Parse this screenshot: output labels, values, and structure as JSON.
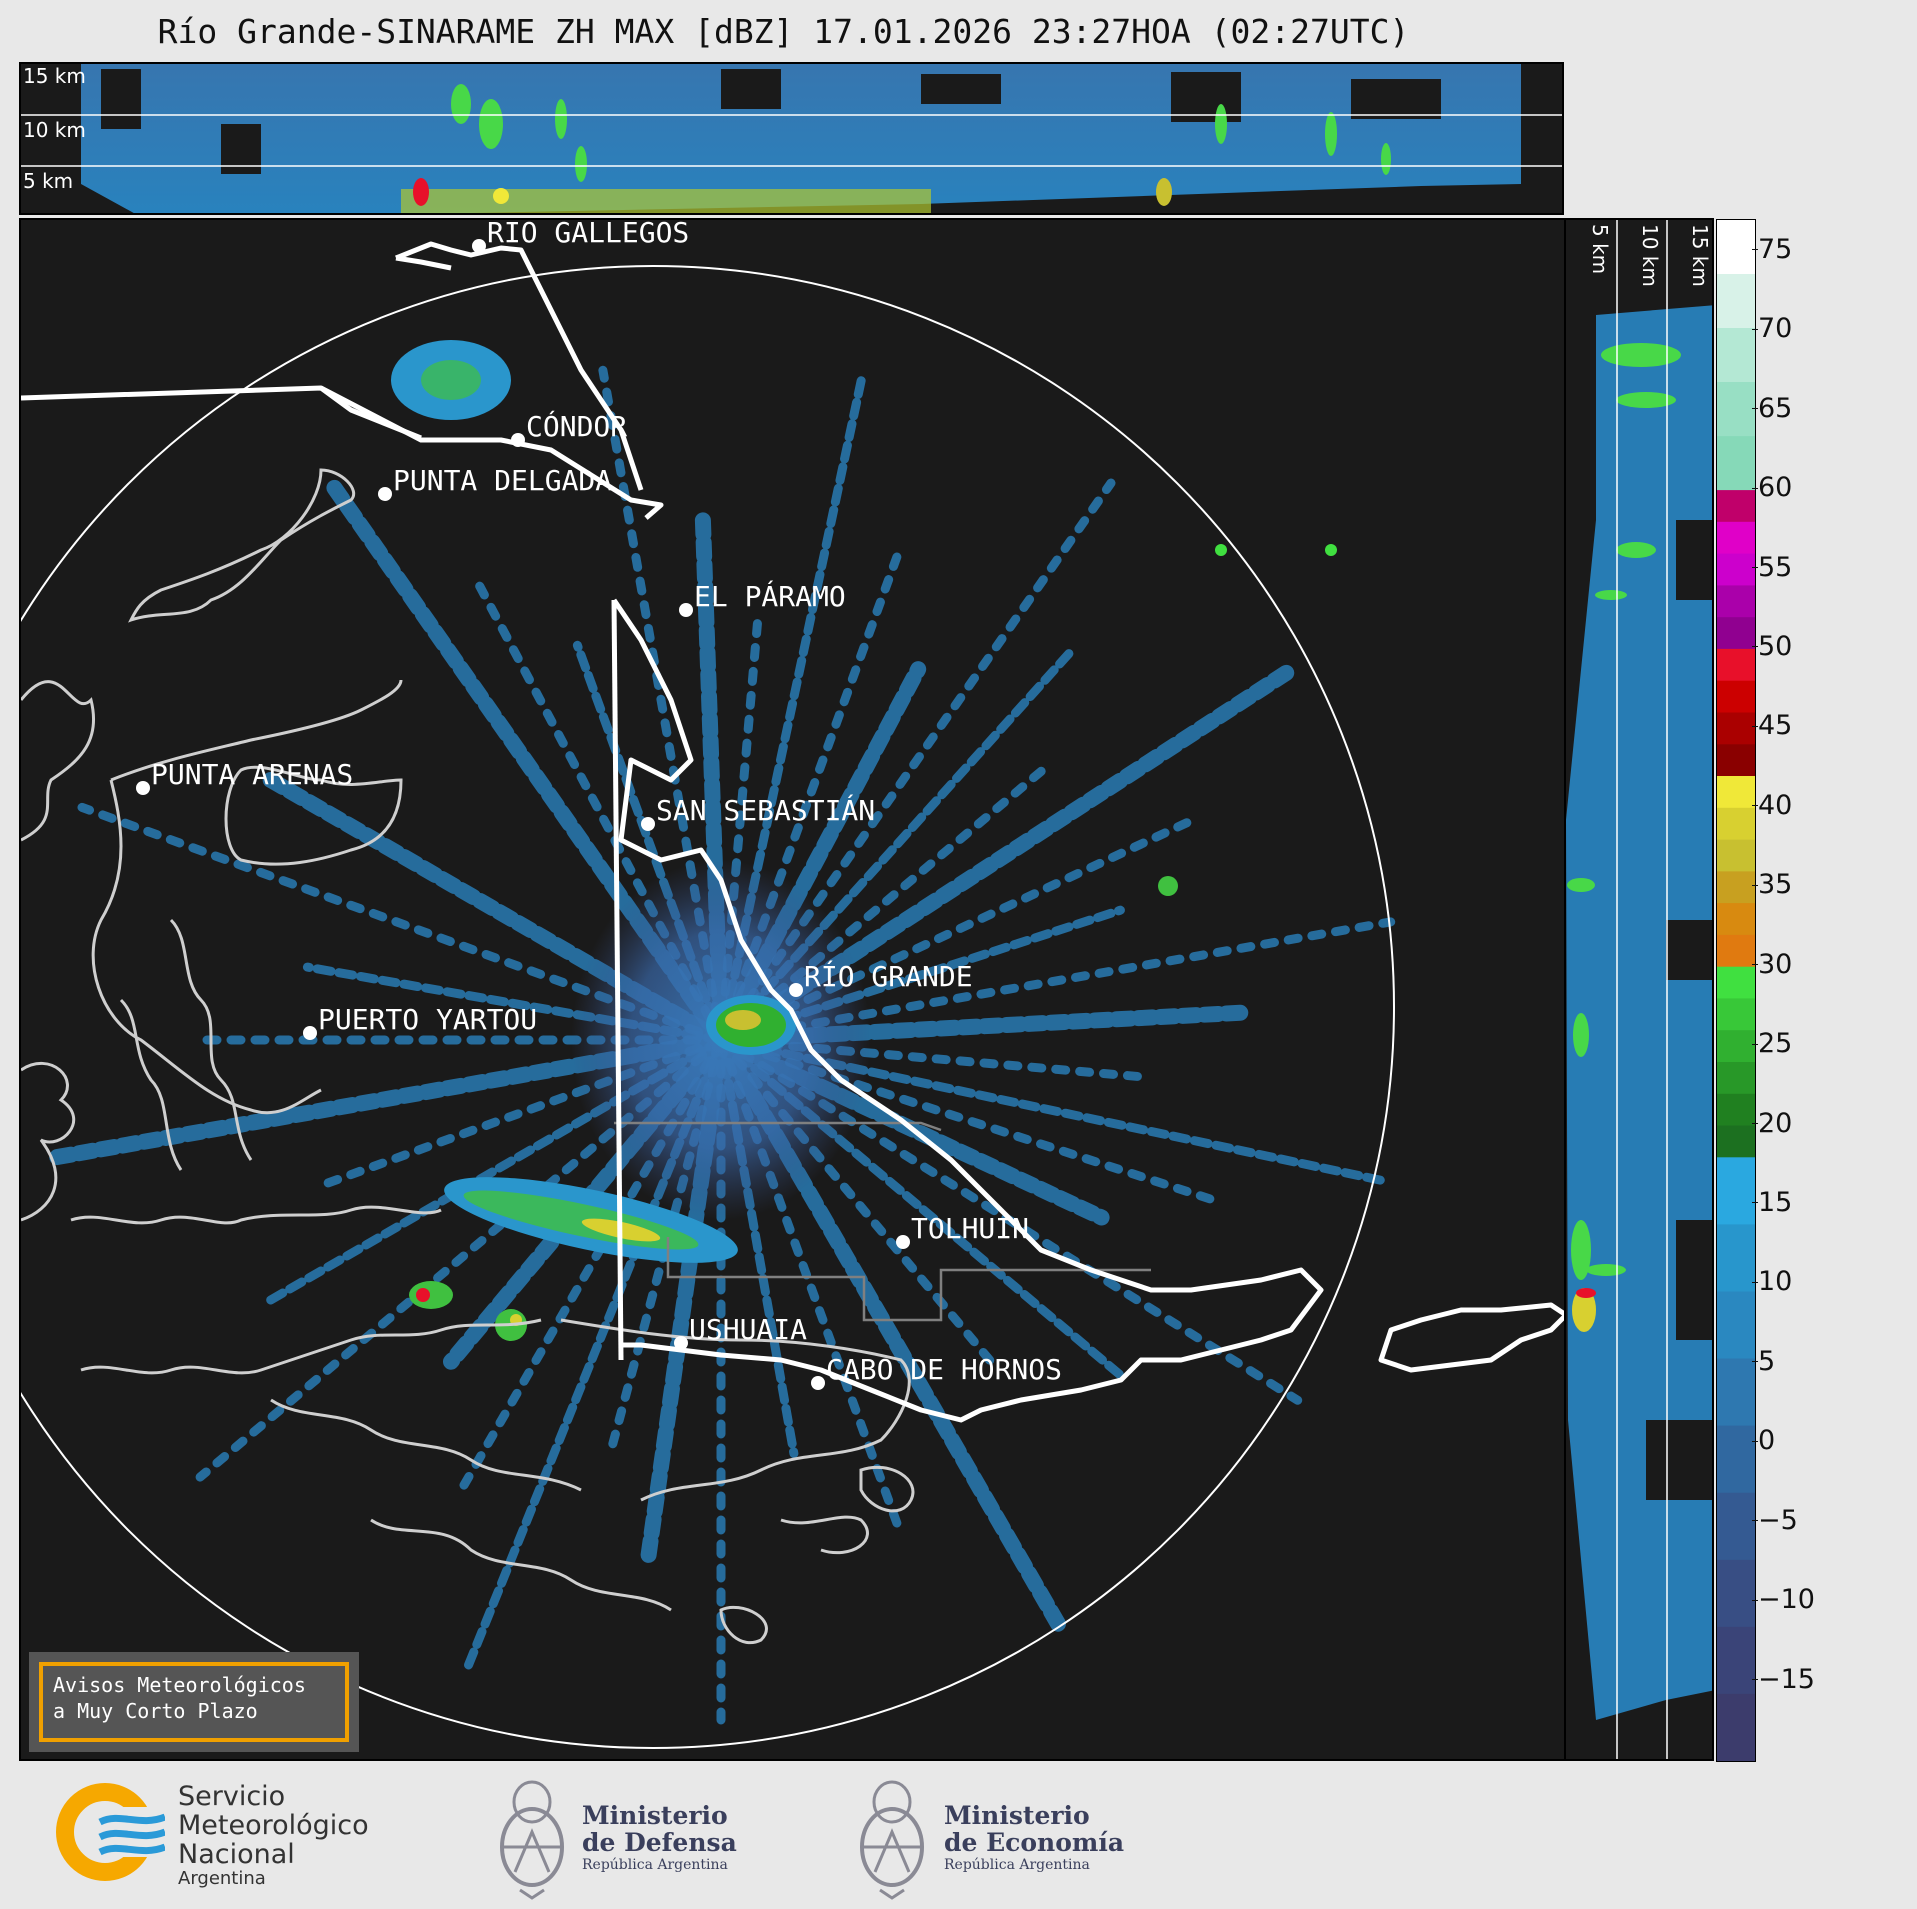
{
  "title": "Río Grande-SINARAME ZH MAX [dBZ] 17.01.2026 23:27HOA (02:27UTC)",
  "top_panel": {
    "altitude_labels": [
      "15 km",
      "10 km",
      "5 km"
    ]
  },
  "side_panel": {
    "altitude_labels": [
      "5 km",
      "10 km",
      "15 km"
    ]
  },
  "colorbar": {
    "unit": "dBZ",
    "range": [
      -20,
      77
    ],
    "ticks": [
      "75",
      "70",
      "65",
      "60",
      "55",
      "50",
      "45",
      "40",
      "35",
      "30",
      "25",
      "20",
      "15",
      "10",
      "5",
      "0",
      "−5",
      "−10",
      "−15"
    ],
    "bands": [
      {
        "from": 60,
        "to": 77,
        "colors": [
          "#ffffff",
          "#d8f2e8",
          "#b4e8d4",
          "#98dfc4",
          "#86d9b8"
        ]
      },
      {
        "from": 50,
        "to": 60,
        "colors": [
          "#c0006a",
          "#e000c8",
          "#cc00cc",
          "#aa00aa",
          "#900090"
        ]
      },
      {
        "from": 42,
        "to": 50,
        "colors": [
          "#e8102a",
          "#cc0000",
          "#aa0000",
          "#8a0000"
        ]
      },
      {
        "from": 30,
        "to": 42,
        "colors": [
          "#f0e838",
          "#d8d030",
          "#c8c030",
          "#c8a020",
          "#d88a10",
          "#e07a10"
        ]
      },
      {
        "from": 18,
        "to": 30,
        "colors": [
          "#40e040",
          "#38c838",
          "#30b030",
          "#289828",
          "#208020",
          "#1c7020"
        ]
      },
      {
        "from": -20,
        "to": 18,
        "colors": [
          "#2aa8e0",
          "#2896cc",
          "#2a88c0",
          "#2e78b0",
          "#3068a0",
          "#345a92",
          "#384e84",
          "#3a4478",
          "#3c3c6c"
        ]
      }
    ]
  },
  "map": {
    "cities": [
      {
        "name": "RÍO GALLEGOS"
      },
      {
        "name": "CÓNDOR"
      },
      {
        "name": "PUNTA DELGADA"
      },
      {
        "name": "EL PÁRAMO"
      },
      {
        "name": "PUNTA ARENAS"
      },
      {
        "name": "SAN SEBASTIÁN"
      },
      {
        "name": "RÍO GRANDE"
      },
      {
        "name": "PUERTO YARTOU"
      },
      {
        "name": "TOLHUIN"
      },
      {
        "name": "USHUAIA"
      },
      {
        "name": "CABO DE HORNOS"
      }
    ]
  },
  "notice": {
    "line1": "Avisos Meteorológicos",
    "line2": "a Muy Corto Plazo"
  },
  "footer": {
    "smn": {
      "line1": "Servicio",
      "line2": "Meteorológico",
      "line3": "Nacional",
      "line4": "Argentina"
    },
    "defensa": {
      "line1": "Ministerio",
      "line2": "de Defensa",
      "line3": "República Argentina"
    },
    "economia": {
      "line1": "Ministerio",
      "line2": "de Economía",
      "line3": "República Argentina"
    }
  }
}
